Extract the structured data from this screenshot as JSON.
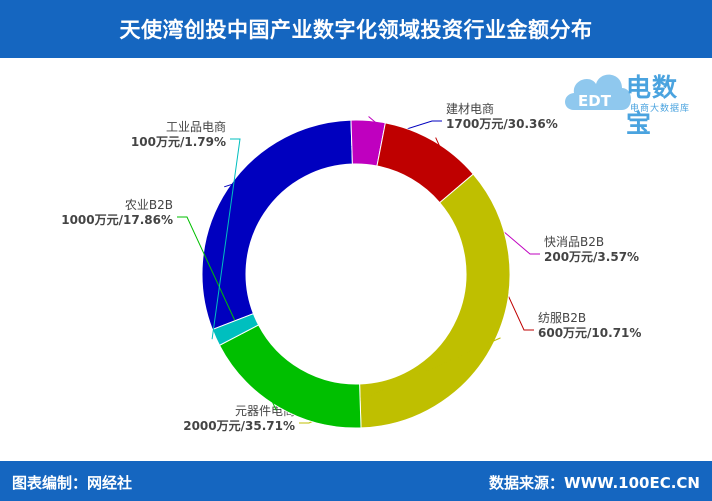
{
  "header": {
    "title": "天使湾创投中国产业数字化领域投资行业金额分布"
  },
  "footer": {
    "left": "图表编制：网经社",
    "right": "数据来源：WWW.100EC.CN"
  },
  "logo": {
    "text": "电数宝",
    "subtitle": "电商大数据库",
    "icon_text": "EDT",
    "colors": {
      "cloud": "#8fc8ee",
      "text": "#4aa3df"
    }
  },
  "chart_data": {
    "type": "pie",
    "variant": "donut",
    "unit": "万元",
    "slices": [
      {
        "name": "建材电商",
        "value": 1700,
        "percent": "30.36%",
        "label": "1700万元/30.36%",
        "color": "#0000bf"
      },
      {
        "name": "快消品B2B",
        "value": 200,
        "percent": "3.57%",
        "label": "200万元/3.57%",
        "color": "#bf00bf"
      },
      {
        "name": "纺服B2B",
        "value": 600,
        "percent": "10.71%",
        "label": "600万元/10.71%",
        "color": "#bf0000"
      },
      {
        "name": "元器件电商",
        "value": 2000,
        "percent": "35.71%",
        "label": "2000万元/35.71%",
        "color": "#bfbf00"
      },
      {
        "name": "农业B2B",
        "value": 1000,
        "percent": "17.86%",
        "label": "1000万元/17.86%",
        "color": "#00bf00"
      },
      {
        "name": "工业品电商",
        "value": 100,
        "percent": "1.79%",
        "label": "100万元/1.79%",
        "color": "#00bfbf"
      }
    ]
  }
}
